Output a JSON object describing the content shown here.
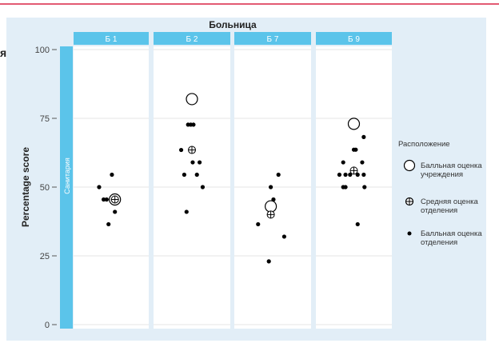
{
  "chart_data": {
    "type": "scatter",
    "facet_title": "Больница",
    "facets": [
      "Б 1",
      "Б 2",
      "Б 7",
      "Б 9"
    ],
    "row_strip": "Санитария",
    "ylabel": "Percentage score",
    "ylim": [
      0,
      100
    ],
    "yticks": [
      0,
      25,
      50,
      75,
      100
    ],
    "grid": true,
    "legend_position": "right",
    "legend": {
      "title": "Расположение",
      "items": [
        {
          "key": "facility",
          "lines": [
            "Балльная оценка",
            "учреждения"
          ]
        },
        {
          "key": "mean",
          "lines": [
            "Средняя оценка",
            "отделения"
          ]
        },
        {
          "key": "dept",
          "lines": [
            "Балльная оценка",
            "отделения"
          ]
        }
      ]
    },
    "colors": {
      "strip": "#5bc4ea",
      "background": "#e2eef7",
      "panel": "#ffffff",
      "points": "#000000"
    },
    "panels": [
      {
        "facet": "Б 1",
        "facility": {
          "x": 0.1,
          "y": 45.5
        },
        "mean": {
          "x": 0.1,
          "y": 45.5
        },
        "dept": [
          {
            "x": -0.32,
            "y": 50
          },
          {
            "x": 0.02,
            "y": 54.5
          },
          {
            "x": -0.2,
            "y": 45.5
          },
          {
            "x": -0.12,
            "y": 45.5
          },
          {
            "x": 0.03,
            "y": 45.5
          },
          {
            "x": 0.1,
            "y": 45.5
          },
          {
            "x": 0.1,
            "y": 41
          },
          {
            "x": -0.07,
            "y": 36.5
          }
        ]
      },
      {
        "facet": "Б 2",
        "facility": {
          "x": 0.0,
          "y": 82
        },
        "mean": {
          "x": 0.0,
          "y": 63.5
        },
        "dept": [
          {
            "x": -0.04,
            "y": 82
          },
          {
            "x": 0.04,
            "y": 82
          },
          {
            "x": -0.1,
            "y": 72.7
          },
          {
            "x": -0.03,
            "y": 72.7
          },
          {
            "x": 0.04,
            "y": 72.7
          },
          {
            "x": -0.28,
            "y": 63.5
          },
          {
            "x": -0.2,
            "y": 54.5
          },
          {
            "x": 0.02,
            "y": 59
          },
          {
            "x": 0.2,
            "y": 59
          },
          {
            "x": 0.13,
            "y": 54.5
          },
          {
            "x": 0.28,
            "y": 50
          },
          {
            "x": -0.14,
            "y": 41
          }
        ]
      },
      {
        "facet": "Б 7",
        "facility": {
          "x": -0.05,
          "y": 43
        },
        "mean": {
          "x": -0.05,
          "y": 40
        },
        "dept": [
          {
            "x": -0.05,
            "y": 50
          },
          {
            "x": 0.15,
            "y": 54.5
          },
          {
            "x": 0.02,
            "y": 45.5
          },
          {
            "x": -0.38,
            "y": 36.5
          },
          {
            "x": 0.3,
            "y": 32
          },
          {
            "x": -0.1,
            "y": 23
          }
        ]
      },
      {
        "facet": "Б 9",
        "facility": {
          "x": 0.0,
          "y": 73
        },
        "mean": {
          "x": 0.0,
          "y": 56
        },
        "dept": [
          {
            "x": 0.26,
            "y": 68.2
          },
          {
            "x": 0.0,
            "y": 63.6
          },
          {
            "x": 0.05,
            "y": 63.6
          },
          {
            "x": -0.28,
            "y": 59
          },
          {
            "x": 0.22,
            "y": 59
          },
          {
            "x": -0.38,
            "y": 54.5
          },
          {
            "x": -0.22,
            "y": 54.5
          },
          {
            "x": -0.1,
            "y": 54.5
          },
          {
            "x": 0.1,
            "y": 54.5
          },
          {
            "x": 0.26,
            "y": 54.5
          },
          {
            "x": -0.28,
            "y": 50
          },
          {
            "x": -0.22,
            "y": 50
          },
          {
            "x": 0.28,
            "y": 50
          },
          {
            "x": 0.1,
            "y": 36.5
          }
        ]
      }
    ],
    "cut_title_fragment": "я"
  }
}
